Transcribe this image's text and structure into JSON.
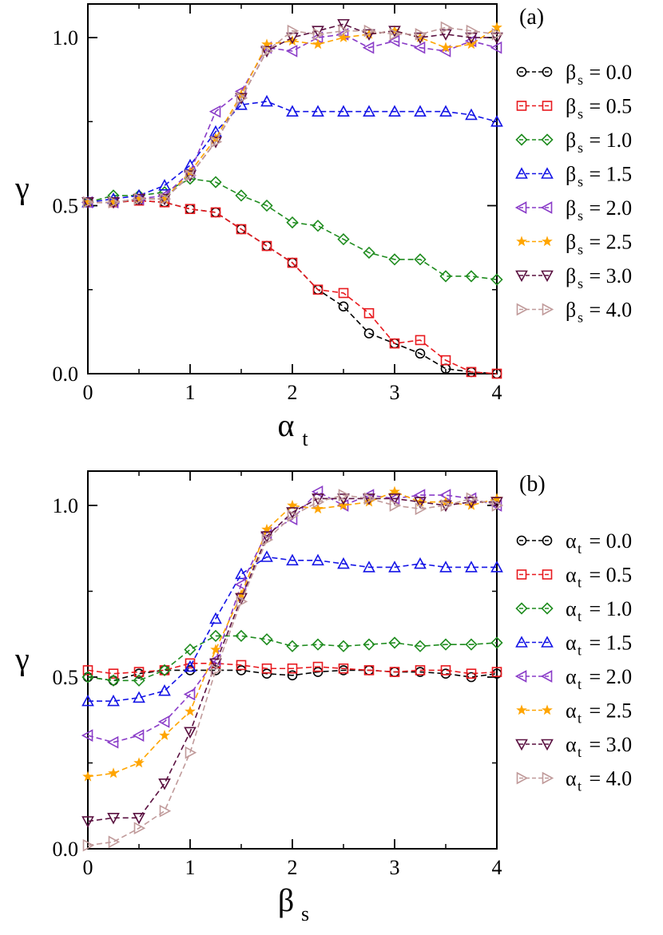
{
  "colors": {
    "black": "#000000",
    "red": "#e8191e",
    "green": "#1f8c1f",
    "blue": "#1414e6",
    "purple": "#8a3cc8",
    "orange": "#ffa500",
    "maroon": "#5a1040",
    "tan": "#c09a9a"
  },
  "chart_data": [
    {
      "type": "line",
      "panel_label": "(a)",
      "xlabel_main": "α",
      "xlabel_sub": "t",
      "ylabel": "γ",
      "xlim": [
        0,
        4
      ],
      "ylim": [
        0,
        1.1
      ],
      "x_ticks": [
        "0",
        "1",
        "2",
        "3",
        "4"
      ],
      "y_ticks": [
        "0.0",
        "0.5",
        "1.0"
      ],
      "x": [
        0,
        0.25,
        0.5,
        0.75,
        1.0,
        1.25,
        1.5,
        1.75,
        2.0,
        2.25,
        2.5,
        2.75,
        3.0,
        3.25,
        3.5,
        3.75,
        4.0
      ],
      "series": [
        {
          "legend_main": "β",
          "legend_sub": "s",
          "legend_value": " = 0.0",
          "marker": "circle",
          "color": "black",
          "values": [
            0.51,
            0.51,
            0.515,
            0.51,
            0.49,
            0.48,
            0.43,
            0.38,
            0.33,
            0.25,
            0.2,
            0.12,
            0.09,
            0.06,
            0.015,
            0.005,
            0.0
          ]
        },
        {
          "legend_main": "β",
          "legend_sub": "s",
          "legend_value": " = 0.5",
          "marker": "square",
          "color": "red",
          "values": [
            0.51,
            0.51,
            0.515,
            0.51,
            0.49,
            0.48,
            0.43,
            0.38,
            0.33,
            0.25,
            0.24,
            0.18,
            0.09,
            0.1,
            0.04,
            0.005,
            0.0
          ]
        },
        {
          "legend_main": "β",
          "legend_sub": "s",
          "legend_value": " = 1.0",
          "marker": "diamond",
          "color": "green",
          "values": [
            0.51,
            0.53,
            0.53,
            0.54,
            0.58,
            0.57,
            0.53,
            0.5,
            0.45,
            0.44,
            0.4,
            0.36,
            0.34,
            0.34,
            0.29,
            0.29,
            0.28
          ]
        },
        {
          "legend_main": "β",
          "legend_sub": "s",
          "legend_value": " = 1.5",
          "marker": "triangle-up",
          "color": "blue",
          "values": [
            0.51,
            0.52,
            0.53,
            0.56,
            0.62,
            0.72,
            0.8,
            0.81,
            0.78,
            0.78,
            0.78,
            0.78,
            0.78,
            0.78,
            0.78,
            0.77,
            0.75
          ]
        },
        {
          "legend_main": "β",
          "legend_sub": "s",
          "legend_value": " = 2.0",
          "marker": "triangle-left",
          "color": "purple",
          "values": [
            0.51,
            0.51,
            0.52,
            0.53,
            0.6,
            0.78,
            0.84,
            0.97,
            0.96,
            1.0,
            1.01,
            0.97,
            0.99,
            0.97,
            0.96,
            0.99,
            0.97
          ]
        },
        {
          "legend_main": "β",
          "legend_sub": "s",
          "legend_value": " = 2.5",
          "marker": "star",
          "color": "orange",
          "values": [
            0.51,
            0.51,
            0.52,
            0.52,
            0.6,
            0.7,
            0.83,
            0.98,
            0.99,
            0.98,
            1.0,
            1.01,
            1.02,
            1.0,
            0.97,
            0.98,
            1.03
          ]
        },
        {
          "legend_main": "β",
          "legend_sub": "s",
          "legend_value": " = 3.0",
          "marker": "triangle-down",
          "color": "maroon",
          "values": [
            0.51,
            0.51,
            0.52,
            0.52,
            0.59,
            0.69,
            0.82,
            0.96,
            1.0,
            1.02,
            1.04,
            1.01,
            1.02,
            1.0,
            1.01,
            1.0,
            1.0
          ]
        },
        {
          "legend_main": "β",
          "legend_sub": "s",
          "legend_value": " = 4.0",
          "marker": "triangle-right",
          "color": "tan",
          "values": [
            0.51,
            0.51,
            0.52,
            0.52,
            0.59,
            0.69,
            0.82,
            0.96,
            1.02,
            1.01,
            1.02,
            1.02,
            1.01,
            1.01,
            1.03,
            1.02,
            1.01
          ]
        }
      ]
    },
    {
      "type": "line",
      "panel_label": "(b)",
      "xlabel_main": "β",
      "xlabel_sub": "s",
      "ylabel": "γ",
      "xlim": [
        0,
        4
      ],
      "ylim": [
        0,
        1.1
      ],
      "x_ticks": [
        "0",
        "1",
        "2",
        "3",
        "4"
      ],
      "y_ticks": [
        "0.0",
        "0.5",
        "1.0"
      ],
      "x": [
        0,
        0.25,
        0.5,
        0.75,
        1.0,
        1.25,
        1.5,
        1.75,
        2.0,
        2.25,
        2.5,
        2.75,
        3.0,
        3.25,
        3.5,
        3.75,
        4.0
      ],
      "series": [
        {
          "legend_main": "α",
          "legend_sub": "t",
          "legend_value": " = 0.0",
          "marker": "circle",
          "color": "black",
          "values": [
            0.5,
            0.49,
            0.51,
            0.52,
            0.52,
            0.52,
            0.52,
            0.51,
            0.505,
            0.515,
            0.52,
            0.52,
            0.515,
            0.515,
            0.51,
            0.5,
            0.51
          ]
        },
        {
          "legend_main": "α",
          "legend_sub": "t",
          "legend_value": " = 0.5",
          "marker": "square",
          "color": "red",
          "values": [
            0.52,
            0.51,
            0.515,
            0.52,
            0.54,
            0.54,
            0.535,
            0.525,
            0.525,
            0.53,
            0.525,
            0.52,
            0.515,
            0.52,
            0.52,
            0.51,
            0.515
          ]
        },
        {
          "legend_main": "α",
          "legend_sub": "t",
          "legend_value": " = 1.0",
          "marker": "diamond",
          "color": "green",
          "values": [
            0.5,
            0.49,
            0.49,
            0.52,
            0.58,
            0.62,
            0.62,
            0.61,
            0.59,
            0.595,
            0.59,
            0.595,
            0.6,
            0.59,
            0.595,
            0.595,
            0.6
          ]
        },
        {
          "legend_main": "α",
          "legend_sub": "t",
          "legend_value": " = 1.5",
          "marker": "triangle-up",
          "color": "blue",
          "values": [
            0.43,
            0.43,
            0.44,
            0.46,
            0.53,
            0.67,
            0.8,
            0.85,
            0.84,
            0.84,
            0.83,
            0.82,
            0.82,
            0.83,
            0.82,
            0.82,
            0.82
          ]
        },
        {
          "legend_main": "α",
          "legend_sub": "t",
          "legend_value": " = 2.0",
          "marker": "triangle-left",
          "color": "purple",
          "values": [
            0.33,
            0.31,
            0.33,
            0.37,
            0.45,
            0.55,
            0.77,
            0.92,
            0.96,
            1.04,
            1.0,
            1.03,
            1.02,
            1.03,
            1.03,
            1.02,
            1.0
          ]
        },
        {
          "legend_main": "α",
          "legend_sub": "t",
          "legend_value": " = 2.5",
          "marker": "star",
          "color": "orange",
          "values": [
            0.21,
            0.22,
            0.25,
            0.33,
            0.4,
            0.58,
            0.74,
            0.93,
            1.0,
            0.99,
            1.0,
            1.01,
            1.04,
            1.01,
            1.01,
            1.0,
            1.02
          ]
        },
        {
          "legend_main": "α",
          "legend_sub": "t",
          "legend_value": " = 3.0",
          "marker": "triangle-down",
          "color": "maroon",
          "values": [
            0.08,
            0.09,
            0.09,
            0.19,
            0.34,
            0.54,
            0.73,
            0.91,
            0.98,
            1.02,
            1.02,
            1.02,
            1.02,
            1.01,
            1.0,
            1.01,
            1.01
          ]
        },
        {
          "legend_main": "α",
          "legend_sub": "t",
          "legend_value": " = 4.0",
          "marker": "triangle-right",
          "color": "tan",
          "values": [
            0.01,
            0.02,
            0.06,
            0.11,
            0.28,
            0.52,
            0.72,
            0.9,
            0.97,
            1.01,
            1.03,
            1.02,
            1.0,
            0.99,
            1.0,
            1.02,
            1.0
          ]
        }
      ]
    }
  ]
}
